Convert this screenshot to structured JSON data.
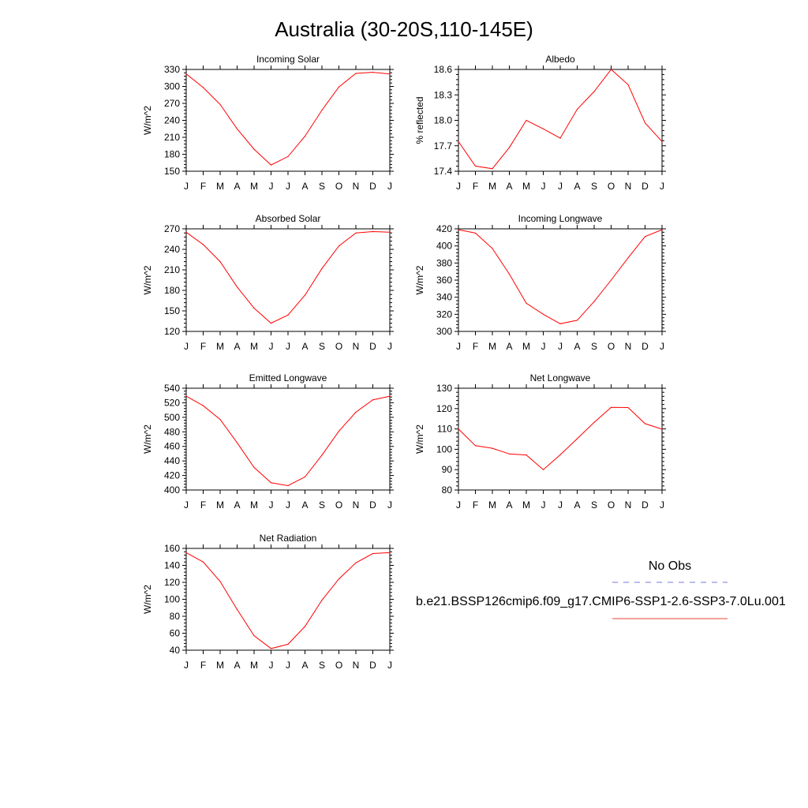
{
  "figure": {
    "title": "Australia (30-20S,110-145E)",
    "legend": {
      "obs_label": "No Obs",
      "obs_color": "#7777dd",
      "model_label": "b.e21.BSSP126cmip6.f09_g17.CMIP6-SSP1-2.6-SSP3-7.0Lu.001",
      "model_color": "#e8453c"
    }
  },
  "chart_data": [
    {
      "type": "line",
      "title": "Incoming Solar",
      "ylabel": "W/m^2",
      "x": [
        "J",
        "F",
        "M",
        "A",
        "M",
        "J",
        "J",
        "A",
        "S",
        "O",
        "N",
        "D",
        "J"
      ],
      "ylim": [
        150,
        330
      ],
      "yticks": [
        150,
        180,
        210,
        240,
        270,
        300,
        330
      ],
      "series": [
        {
          "color": "#ff0000",
          "values": [
            322,
            298,
            268,
            225,
            189,
            161,
            176,
            212,
            258,
            299,
            323,
            325,
            322
          ]
        }
      ]
    },
    {
      "type": "line",
      "title": "Albedo",
      "ylabel": "% reflected",
      "x": [
        "J",
        "F",
        "M",
        "A",
        "M",
        "J",
        "J",
        "A",
        "S",
        "O",
        "N",
        "D",
        "J"
      ],
      "ylim": [
        17.4,
        18.6
      ],
      "yticks": [
        17.4,
        17.7,
        18.0,
        18.3,
        18.6
      ],
      "series": [
        {
          "color": "#ff0000",
          "values": [
            17.75,
            17.46,
            17.43,
            17.68,
            18.0,
            17.9,
            17.79,
            18.13,
            18.34,
            18.6,
            18.42,
            17.97,
            17.75
          ]
        }
      ]
    },
    {
      "type": "line",
      "title": "Absorbed Solar",
      "ylabel": "W/m^2",
      "x": [
        "J",
        "F",
        "M",
        "A",
        "M",
        "J",
        "J",
        "A",
        "S",
        "O",
        "N",
        "D",
        "J"
      ],
      "ylim": [
        120,
        270
      ],
      "yticks": [
        120,
        150,
        180,
        210,
        240,
        270
      ],
      "series": [
        {
          "color": "#ff0000",
          "values": [
            265,
            247,
            222,
            185,
            154,
            132,
            144,
            173,
            212,
            245,
            264,
            266,
            265
          ]
        }
      ]
    },
    {
      "type": "line",
      "title": "Incoming Longwave",
      "ylabel": "W/m^2",
      "x": [
        "J",
        "F",
        "M",
        "A",
        "M",
        "J",
        "J",
        "A",
        "S",
        "O",
        "N",
        "D",
        "J"
      ],
      "ylim": [
        300,
        420
      ],
      "yticks": [
        300,
        320,
        340,
        360,
        380,
        400,
        420
      ],
      "series": [
        {
          "color": "#ff0000",
          "values": [
            419,
            415,
            397,
            367,
            333,
            320,
            309,
            313,
            335,
            360,
            386,
            411,
            419
          ]
        }
      ]
    },
    {
      "type": "line",
      "title": "Emitted Longwave",
      "ylabel": "W/m^2",
      "x": [
        "J",
        "F",
        "M",
        "A",
        "M",
        "J",
        "J",
        "A",
        "S",
        "O",
        "N",
        "D",
        "J"
      ],
      "ylim": [
        400,
        540
      ],
      "yticks": [
        400,
        420,
        440,
        460,
        480,
        500,
        520,
        540
      ],
      "series": [
        {
          "color": "#ff0000",
          "values": [
            529,
            516,
            497,
            465,
            431,
            410,
            406,
            418,
            448,
            481,
            507,
            524,
            529
          ]
        }
      ]
    },
    {
      "type": "line",
      "title": "Net Longwave",
      "ylabel": "W/m^2",
      "x": [
        "J",
        "F",
        "M",
        "A",
        "M",
        "J",
        "J",
        "A",
        "S",
        "O",
        "N",
        "D",
        "J"
      ],
      "ylim": [
        80,
        130
      ],
      "yticks": [
        80,
        90,
        100,
        110,
        120,
        130
      ],
      "series": [
        {
          "color": "#ff0000",
          "values": [
            110,
            101.8,
            100.5,
            97.7,
            97.2,
            90,
            97.3,
            105.2,
            113.2,
            120.6,
            120.5,
            112.6,
            109.9
          ]
        }
      ]
    },
    {
      "type": "line",
      "title": "Net Radiation",
      "ylabel": "W/m^2",
      "x": [
        "J",
        "F",
        "M",
        "A",
        "M",
        "J",
        "J",
        "A",
        "S",
        "O",
        "N",
        "D",
        "J"
      ],
      "ylim": [
        40,
        160
      ],
      "yticks": [
        40,
        60,
        80,
        100,
        120,
        140,
        160
      ],
      "series": [
        {
          "color": "#ff0000",
          "values": [
            155,
            144,
            121,
            88,
            57,
            42,
            47,
            68,
            99,
            124,
            143,
            154,
            155
          ]
        }
      ]
    }
  ]
}
